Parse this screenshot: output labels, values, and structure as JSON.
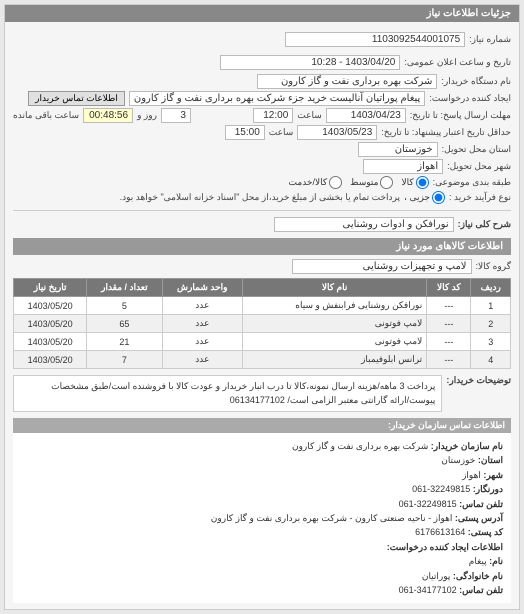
{
  "panel": {
    "title": "جزئیات اطلاعات نیاز"
  },
  "header": {
    "need_no_label": "شماره نیاز:",
    "need_no": "1103092544001075",
    "announce_label": "تاریخ و ساعت اعلان عمومی:",
    "announce_value": "1403/04/20 - 10:28",
    "buyer_org_label": "نام دستگاه خریدار:",
    "buyer_org": "شرکت بهره برداری نفت و گاز کارون",
    "requester_label": "ایجاد کننده درخواست:",
    "requester": "پیغام پوراتیان آنالیست خرید جزء شرکت بهره برداری نفت و گاز کارون",
    "contact_btn": "اطلاعات تماس خریدار",
    "deadline_send_label": "مهلت ارسال پاسخ: تا تاریخ:",
    "deadline_send_date": "1403/04/23",
    "deadline_send_time_label": "ساعت",
    "deadline_send_time": "12:00",
    "days_label": "روز و",
    "days_value": "3",
    "remain_label": "ساعت باقی مانده",
    "remain_value": "00:48:56",
    "credit_label": "حداقل تاریخ اعتبار پیشنهاد: تا تاریخ:",
    "credit_date": "1403/05/23",
    "credit_time_label": "ساعت",
    "credit_time": "15:00",
    "province_label": "استان محل تحویل:",
    "province": "خوزستان",
    "city_label": "شهر محل تحویل:",
    "city": "اهواز",
    "group_label": "طبقه بندی موضوعی:",
    "group_kala": "کالا",
    "group_khadamat": "کالا/خدمت",
    "group_vasat": "متوسط",
    "process_label": "نوع فرآیند خرید :",
    "process_jozi": "جزیی ،",
    "process_note": "پرداخت تمام یا بخشی از مبلغ خرید،از محل \"اسناد خزانه اسلامی\" خواهد بود."
  },
  "need": {
    "title_label": "شرح کلی نیاز:",
    "title_value": "نورافکن و ادوات روشنایی"
  },
  "goods": {
    "section": "اطلاعات کالاهای مورد نیاز",
    "group_label": "گروه کالا:",
    "group_value": "لامپ و تجهیزات روشنایی",
    "columns": {
      "row": "ردیف",
      "code": "کد کالا",
      "name": "نام کالا",
      "unit": "واحد شمارش",
      "qty": "تعداد / مقدار",
      "date": "تاریخ نیاز"
    },
    "rows": [
      {
        "row": "1",
        "code": "---",
        "name": "نورافکن روشنایی فرابنفش و سیاه",
        "unit": "عدد",
        "qty": "5",
        "date": "1403/05/20"
      },
      {
        "row": "2",
        "code": "---",
        "name": "لامپ فوتونی",
        "unit": "عدد",
        "qty": "65",
        "date": "1403/05/20"
      },
      {
        "row": "3",
        "code": "---",
        "name": "لامپ فوتونی",
        "unit": "عدد",
        "qty": "21",
        "date": "1403/05/20"
      },
      {
        "row": "4",
        "code": "---",
        "name": "ترانس ابلوفیمباز",
        "unit": "عدد",
        "qty": "7",
        "date": "1403/05/20"
      }
    ]
  },
  "notes": {
    "label": "توضیحات خریدار:",
    "text": "پرداخت 3 ماهه/هزینه ارسال نمونه،کالا تا درب انبار خریدار و عودت کالا با فروشنده است/طبق مشخصات پیوست/ارائه گارانتی معتبر الزامی است/ 06134177102"
  },
  "contact": {
    "section": "اطلاعات تماس سازمان خریدار:",
    "org_label": "نام سازمان خریدار:",
    "org": "شرکت بهره برداری نفت و گاز کارون",
    "prov_label": "استان:",
    "prov": "خوزستان",
    "city_label": "شهر:",
    "city": "اهواز",
    "fax_label": "دورنگار:",
    "fax": "32249815-061",
    "tel_label": "تلفن تماس:",
    "tel": "32249815-061",
    "addr_label": "آدرس پستی:",
    "addr": "اهواز - ناحیه صنعتی کارون - شرکت بهره برداری نفت و گاز کارون",
    "post_label": "کد پستی:",
    "post": "6176613164",
    "creator_label": "اطلاعات ایجاد کننده درخواست:",
    "name_label": "نام:",
    "name": "پیغام",
    "family_label": "نام خانوادگی:",
    "family": "پوراتیان",
    "phone_label": "تلفن تماس:",
    "phone": "34177102-061"
  }
}
